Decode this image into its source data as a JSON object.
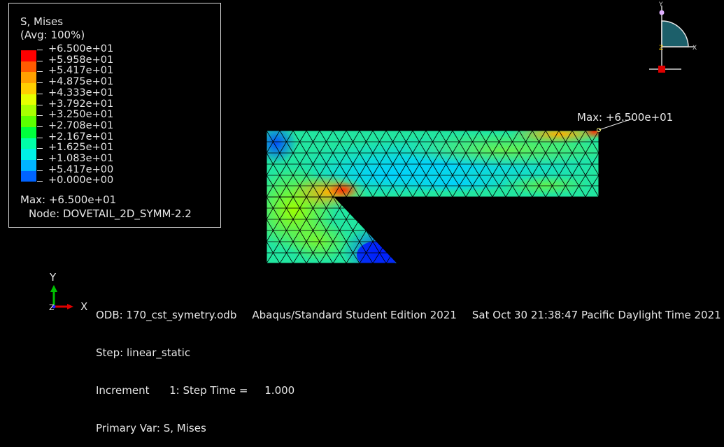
{
  "legend": {
    "title": "S, Mises",
    "avg": "(Avg: 100%)",
    "levels": [
      "+6.500e+01",
      "+5.958e+01",
      "+5.417e+01",
      "+4.875e+01",
      "+4.333e+01",
      "+3.792e+01",
      "+3.250e+01",
      "+2.708e+01",
      "+2.167e+01",
      "+1.625e+01",
      "+1.083e+01",
      "+5.417e+00",
      "+0.000e+00"
    ],
    "colors": [
      "#ff0000",
      "#ff5a00",
      "#ffa000",
      "#ffcf00",
      "#e6ff00",
      "#a8ff00",
      "#5cff00",
      "#00ff3c",
      "#00ffa8",
      "#00f0e6",
      "#00b4ff",
      "#0064ff",
      "#0000ff"
    ],
    "max": "Max: +6.500e+01",
    "node": "Node: DOVETAIL_2D_SYMM-2.2"
  },
  "viewport": {
    "max_annotation": "Max: +6.500e+01"
  },
  "triad": {
    "view_y": "Y",
    "view_x": "X",
    "view_z": "Z",
    "axes_y": "Y",
    "axes_x": "X",
    "axes_z": "Z"
  },
  "info": {
    "odb": "ODB: 170_cst_symetry.odb",
    "edition": "Abaqus/Standard Student Edition 2021",
    "date": "Sat Oct 30 21:38:47 Pacific Daylight Time 2021",
    "step": "Step: linear_static",
    "increment": "Increment      1: Step Time =     1.000",
    "primary_var": "Primary Var: S, Mises"
  }
}
